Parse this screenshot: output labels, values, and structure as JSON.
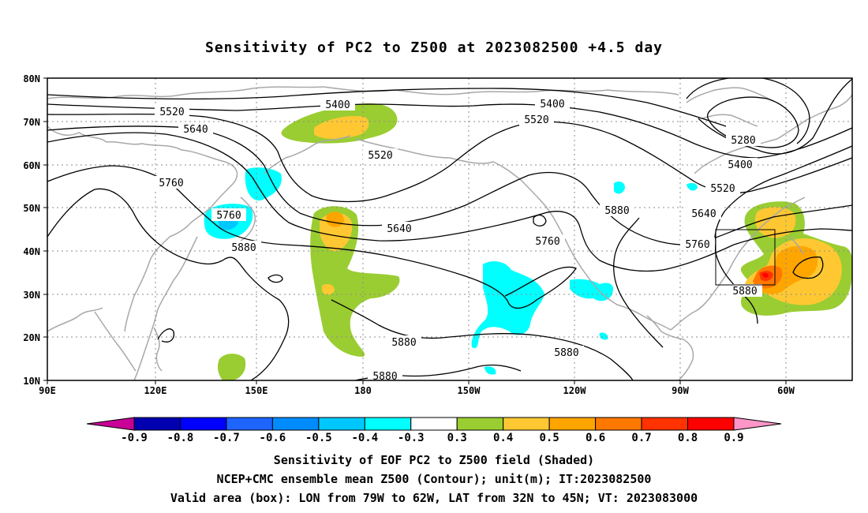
{
  "title": "Sensitivity of PC2 to Z500 at 2023082500 +4.5 day",
  "map": {
    "lat_ticks": [
      "80N",
      "70N",
      "60N",
      "50N",
      "40N",
      "30N",
      "20N",
      "10N"
    ],
    "lon_ticks": [
      "90E",
      "120E",
      "150E",
      "180",
      "150W",
      "120W",
      "90W",
      "60W"
    ],
    "lon_range": [
      "90E",
      "50W"
    ],
    "lat_range": [
      "10N",
      "80N"
    ],
    "grid": true,
    "contour_labels": [
      {
        "id": "c5520a",
        "text": "5520"
      },
      {
        "id": "c5640a",
        "text": "5640"
      },
      {
        "id": "c5760a",
        "text": "5760"
      },
      {
        "id": "c5760b",
        "text": "5760"
      },
      {
        "id": "c5880a",
        "text": "5880"
      },
      {
        "id": "c5400a",
        "text": "5400"
      },
      {
        "id": "c5520b",
        "text": "5520"
      },
      {
        "id": "c5640b",
        "text": "5640"
      },
      {
        "id": "c5400b",
        "text": "5400"
      },
      {
        "id": "c5520c",
        "text": "5520"
      },
      {
        "id": "c5880b",
        "text": "5880"
      },
      {
        "id": "c5760c",
        "text": "5760"
      },
      {
        "id": "c5280",
        "text": "5280"
      },
      {
        "id": "c5400c",
        "text": "5400"
      },
      {
        "id": "c5520d",
        "text": "5520"
      },
      {
        "id": "c5640c",
        "text": "5640"
      },
      {
        "id": "c5760d",
        "text": "5760"
      },
      {
        "id": "c5880c",
        "text": "5880"
      },
      {
        "id": "c5880d",
        "text": "5880"
      },
      {
        "id": "c5880e",
        "text": "5880"
      },
      {
        "id": "c5880f",
        "text": "5880"
      }
    ],
    "valid_box": {
      "lon_from": "79W",
      "lon_to": "62W",
      "lat_from": "32N",
      "lat_to": "45N"
    }
  },
  "colorbar": {
    "labels": [
      "-0.9",
      "-0.8",
      "-0.7",
      "-0.6",
      "-0.5",
      "-0.4",
      "-0.3",
      "0.3",
      "0.4",
      "0.5",
      "0.6",
      "0.7",
      "0.8",
      "0.9"
    ],
    "colors": [
      "#0000b0",
      "#0000ff",
      "#1e64ff",
      "#008cff",
      "#00c8ff",
      "#00ffff",
      "#ffffff",
      "#9acd32",
      "#ffc832",
      "#ffa500",
      "#ff7800",
      "#ff3200",
      "#ff0000"
    ],
    "left_arrow_color": "#c80096",
    "right_arrow_color": "#ff96c8"
  },
  "captions": {
    "line1": "Sensitivity of EOF PC2 to Z500 field (Shaded)",
    "line2": "NCEP+CMC ensemble mean Z500 (Contour); unit(m); IT:2023082500",
    "line3": "Valid area (box): LON from 79W to 62W, LAT from 32N to 45N; VT: 2023083000"
  }
}
